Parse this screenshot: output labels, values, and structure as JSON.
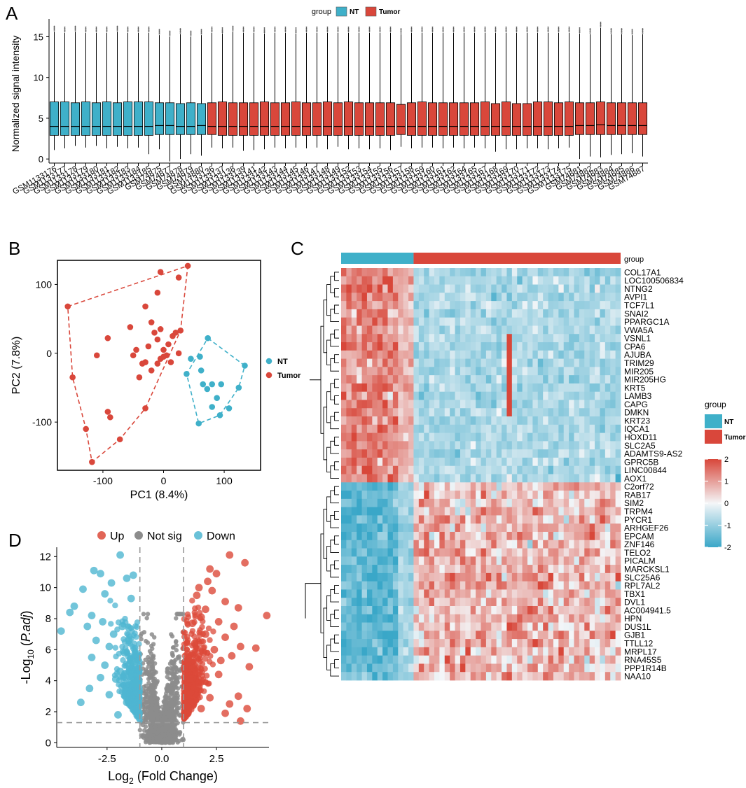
{
  "panels": {
    "A": "A",
    "B": "B",
    "C": "C",
    "D": "D"
  },
  "colors": {
    "nt": "#3fb0c9",
    "tumor": "#d9473b",
    "up": "#dc4a3a",
    "down": "#4fb6d1",
    "notsig": "#8c8c8c",
    "heat_low": "#3aa7c8",
    "heat_mid": "#f4f6f8",
    "heat_high": "#d8473a"
  },
  "chart_data": [
    {
      "id": "A",
      "type": "boxplot",
      "title": "",
      "ylabel": "Normalized signal intensity",
      "xlabel": "",
      "ylim": [
        -0.5,
        16.5
      ],
      "yticks": [
        0,
        5,
        10,
        15
      ],
      "legend": {
        "title": "group",
        "entries": [
          "NT",
          "Tumor"
        ],
        "placement": "top"
      },
      "nt_count": 15,
      "samples": [
        "GSM1133176",
        "GSM1133177",
        "GSM1133178",
        "GSM1133179",
        "GSM1133180",
        "GSM1133181",
        "GSM1133182",
        "GSM1133183",
        "GSM1133184",
        "GSM1133185",
        "GSM74875",
        "GSM74877",
        "GSM74878",
        "GSM74879",
        "GSM74880",
        "GSM1133136",
        "GSM1133137",
        "GSM1133138",
        "GSM1133139",
        "GSM1133141",
        "GSM1133142",
        "GSM1133143",
        "GSM1133144",
        "GSM1133145",
        "GSM1133146",
        "GSM1133147",
        "GSM1133148",
        "GSM1133149",
        "GSM1133152",
        "GSM1133153",
        "GSM1133154",
        "GSM1133155",
        "GSM1133156",
        "GSM1133157",
        "GSM1133158",
        "GSM1133159",
        "GSM1133160",
        "GSM1133161",
        "GSM1133162",
        "GSM1133164",
        "GSM1133165",
        "GSM1133167",
        "GSM1133168",
        "GSM1133169",
        "GSM1133170",
        "GSM1133171",
        "GSM1133172",
        "GSM1133173",
        "GSM1133174",
        "GSM1133175",
        "GSM74881",
        "GSM74882",
        "GSM74883",
        "GSM74884",
        "GSM74885",
        "GSM74886",
        "GSM74887"
      ],
      "q1": [
        2.9,
        2.9,
        2.9,
        2.9,
        2.9,
        2.9,
        2.9,
        2.9,
        2.9,
        2.9,
        3.0,
        3.0,
        3.0,
        3.0,
        3.0,
        3.0,
        2.9,
        2.9,
        2.9,
        2.9,
        2.9,
        2.9,
        2.9,
        2.9,
        2.9,
        2.9,
        2.9,
        2.9,
        2.9,
        2.9,
        2.9,
        2.9,
        2.9,
        3.0,
        2.9,
        2.9,
        2.9,
        2.9,
        2.9,
        2.9,
        2.9,
        2.9,
        2.9,
        2.9,
        2.9,
        2.9,
        2.9,
        2.9,
        2.9,
        2.9,
        3.0,
        3.0,
        3.0,
        3.0,
        3.0,
        3.0,
        3.0
      ],
      "median": [
        4.0,
        4.0,
        4.0,
        4.0,
        4.0,
        4.0,
        4.0,
        4.0,
        4.0,
        4.0,
        4.1,
        4.1,
        4.0,
        4.0,
        4.1,
        4.0,
        4.0,
        4.0,
        4.0,
        4.0,
        4.0,
        4.0,
        4.0,
        4.0,
        4.0,
        4.0,
        4.0,
        4.0,
        4.0,
        4.0,
        4.0,
        4.0,
        4.0,
        4.0,
        4.0,
        4.0,
        4.0,
        4.0,
        4.0,
        4.0,
        4.0,
        4.0,
        4.0,
        4.0,
        4.0,
        4.0,
        4.0,
        4.0,
        4.0,
        4.0,
        4.1,
        4.1,
        4.2,
        4.1,
        4.1,
        4.1,
        4.1
      ],
      "q3": [
        7.0,
        7.0,
        6.9,
        7.0,
        6.9,
        7.0,
        6.9,
        7.0,
        7.0,
        7.0,
        6.9,
        6.9,
        6.8,
        6.9,
        6.8,
        6.9,
        7.0,
        6.9,
        6.9,
        6.9,
        7.0,
        6.9,
        6.9,
        7.0,
        6.9,
        6.9,
        7.0,
        6.9,
        7.0,
        6.9,
        6.9,
        6.9,
        6.9,
        6.7,
        6.9,
        7.0,
        6.9,
        6.9,
        6.9,
        6.9,
        6.9,
        7.0,
        6.8,
        7.0,
        6.8,
        6.8,
        7.0,
        7.0,
        6.9,
        7.0,
        6.9,
        6.9,
        7.0,
        6.9,
        6.9,
        6.9,
        6.9
      ],
      "lower_whisker": [
        1.1,
        1.3,
        1.6,
        1.4,
        1.6,
        1.3,
        1.5,
        1.3,
        1.4,
        0.6,
        1.2,
        -0.3,
        0.0,
        0.6,
        0.4,
        1.4,
        1.3,
        1.4,
        1.0,
        1.1,
        1.2,
        1.4,
        1.3,
        1.4,
        1.3,
        1.4,
        1.2,
        1.5,
        1.2,
        1.3,
        1.2,
        1.3,
        1.1,
        1.5,
        1.3,
        1.4,
        1.4,
        1.3,
        1.4,
        1.3,
        1.4,
        1.3,
        0.9,
        1.2,
        1.2,
        1.3,
        1.3,
        1.2,
        1.3,
        1.4,
        0.0,
        0.3,
        0.2,
        0.5,
        0.6,
        0.7,
        0.3
      ],
      "upper_whisker": [
        15.6,
        15.5,
        15.6,
        15.5,
        15.5,
        15.5,
        15.6,
        15.5,
        15.5,
        15.5,
        15.2,
        15.0,
        15.3,
        15.0,
        15.2,
        15.5,
        15.4,
        15.6,
        15.5,
        15.5,
        15.4,
        15.5,
        15.5,
        15.4,
        15.5,
        15.5,
        15.5,
        15.5,
        15.5,
        15.5,
        15.5,
        15.5,
        15.5,
        15.3,
        15.5,
        15.5,
        15.5,
        15.5,
        15.5,
        15.5,
        15.5,
        15.5,
        15.5,
        15.5,
        15.5,
        15.5,
        15.5,
        15.5,
        15.5,
        15.5,
        15.4,
        15.3,
        16.1,
        15.3,
        15.3,
        15.2,
        15.3
      ]
    },
    {
      "id": "B",
      "type": "scatter",
      "title": "",
      "xlabel": "PC1 (8.4%)",
      "ylabel": "PC2 (7.8%)",
      "xlim": [
        -175,
        160
      ],
      "ylim": [
        -170,
        135
      ],
      "xticks": [
        -100,
        0,
        100
      ],
      "yticks": [
        -100,
        0,
        100
      ],
      "legend": {
        "entries": [
          "NT",
          "Tumor"
        ],
        "placement": "right"
      },
      "series": [
        {
          "name": "Tumor",
          "points": [
            [
              -158,
              68
            ],
            [
              -150,
              -35
            ],
            [
              -128,
              -110
            ],
            [
              -118,
              -158
            ],
            [
              -92,
              22
            ],
            [
              -110,
              -3
            ],
            [
              -92,
              -85
            ],
            [
              -88,
              -93
            ],
            [
              -72,
              -125
            ],
            [
              -30,
              -80
            ],
            [
              -30,
              -13
            ],
            [
              -25,
              10
            ],
            [
              -45,
              5
            ],
            [
              -40,
              -35
            ],
            [
              -55,
              38
            ],
            [
              -50,
              -3
            ],
            [
              -35,
              -15
            ],
            [
              -20,
              45
            ],
            [
              -15,
              30
            ],
            [
              -10,
              20
            ],
            [
              -5,
              35
            ],
            [
              0,
              5
            ],
            [
              5,
              -3
            ],
            [
              8,
              13
            ],
            [
              12,
              -13
            ],
            [
              15,
              25
            ],
            [
              20,
              30
            ],
            [
              25,
              0
            ],
            [
              28,
              33
            ],
            [
              -10,
              -15
            ],
            [
              -20,
              -25
            ],
            [
              -5,
              -8
            ],
            [
              0,
              -5
            ],
            [
              -30,
              68
            ],
            [
              -10,
              88
            ],
            [
              -5,
              118
            ],
            [
              25,
              110
            ],
            [
              40,
              127
            ]
          ]
        },
        {
          "name": "NT",
          "points": [
            [
              73,
              22
            ],
            [
              45,
              -8
            ],
            [
              60,
              -5
            ],
            [
              38,
              -30
            ],
            [
              62,
              -25
            ],
            [
              65,
              -45
            ],
            [
              72,
              -52
            ],
            [
              80,
              -45
            ],
            [
              95,
              -45
            ],
            [
              88,
              -65
            ],
            [
              80,
              -78
            ],
            [
              108,
              -80
            ],
            [
              93,
              -90
            ],
            [
              58,
              -102
            ],
            [
              124,
              -50
            ],
            [
              134,
              -18
            ]
          ]
        }
      ],
      "hull_tumor": [
        [
          -158,
          68
        ],
        [
          40,
          127
        ],
        [
          28,
          33
        ],
        [
          -30,
          -80
        ],
        [
          -72,
          -125
        ],
        [
          -118,
          -158
        ],
        [
          -128,
          -110
        ],
        [
          -150,
          -35
        ]
      ],
      "hull_nt": [
        [
          73,
          22
        ],
        [
          134,
          -18
        ],
        [
          124,
          -50
        ],
        [
          93,
          -90
        ],
        [
          58,
          -102
        ],
        [
          38,
          -30
        ]
      ]
    },
    {
      "id": "C",
      "type": "heatmap",
      "title": "",
      "annotation": "group",
      "legend_title": "group",
      "legend_entries": [
        "NT",
        "Tumor"
      ],
      "scale_ticks": [
        2,
        1,
        0,
        -1,
        -2
      ],
      "nt_columns": 14,
      "tumor_columns": 40,
      "genes": [
        "COL17A1",
        "LOC100506834",
        "NTNG2",
        "AVPI1",
        "TCF7L1",
        "SNAI2",
        "PPARGC1A",
        "VWA5A",
        "VSNL1",
        "CPA6",
        "AJUBA",
        "TRIM29",
        "MIR205",
        "MIR205HG",
        "KRT5",
        "LAMB3",
        "CAPG",
        "DMKN",
        "KRT23",
        "IQCA1",
        "HOXD11",
        "SLC2A5",
        "ADAMTS9-AS2",
        "GPRC5B",
        "LINC00844",
        "AOX1",
        "C2orf72",
        "RAB17",
        "SIM2",
        "TRPM4",
        "PYCR1",
        "ARHGEF26",
        "EPCAM",
        "ZNF146",
        "TELO2",
        "PICALM",
        "MARCKSL1",
        "SLC25A6",
        "RPL7AL2",
        "TBX1",
        "DVL1",
        "AC004941.5",
        "HPN",
        "DUS1L",
        "GJB1",
        "TTLL12",
        "MRPL17",
        "RNA45S5",
        "PPP1R14B",
        "NAA10"
      ],
      "up_in_nt_count": 26
    },
    {
      "id": "D",
      "type": "volcano",
      "title": "",
      "xlabel_main": "Log",
      "xlabel_sub": "2",
      "xlabel_rest": " (Fold Change)",
      "ylabel_main": "-Log",
      "ylabel_sub": "10",
      "ylabel_rest": "P.adj",
      "xlim": [
        -4.8,
        4.9
      ],
      "ylim": [
        -0.3,
        12.6
      ],
      "xticks": [
        -2.5,
        0.0,
        2.5
      ],
      "yticks": [
        0,
        2,
        4,
        6,
        8,
        10,
        12
      ],
      "fc_threshold": 1,
      "padj_line": 1.3,
      "legend": {
        "entries": [
          "Up",
          "Not sig",
          "Down"
        ],
        "placement": "top"
      },
      "up_points": [
        [
          3.1,
          12.1
        ],
        [
          3.8,
          11.6
        ],
        [
          2.2,
          11.2
        ],
        [
          2.5,
          10.9
        ],
        [
          2.1,
          10.4
        ],
        [
          1.7,
          10.0
        ],
        [
          2.3,
          9.8
        ],
        [
          1.6,
          9.5
        ],
        [
          2.9,
          9.1
        ],
        [
          4.8,
          8.2
        ],
        [
          3.5,
          8.7
        ],
        [
          2.0,
          8.6
        ],
        [
          1.8,
          8.1
        ],
        [
          2.6,
          7.8
        ],
        [
          3.3,
          7.5
        ],
        [
          1.4,
          7.7
        ],
        [
          2.9,
          6.8
        ],
        [
          3.6,
          6.2
        ],
        [
          4.3,
          6.1
        ],
        [
          3.2,
          5.6
        ],
        [
          2.7,
          5.3
        ],
        [
          4.0,
          4.9
        ],
        [
          1.9,
          5.8
        ],
        [
          2.4,
          6.0
        ],
        [
          1.5,
          6.4
        ],
        [
          2.0,
          7.0
        ],
        [
          3.5,
          3.0
        ],
        [
          3.1,
          2.5
        ],
        [
          2.9,
          1.9
        ],
        [
          3.6,
          1.4
        ],
        [
          3.9,
          2.2
        ],
        [
          2.2,
          2.9
        ],
        [
          1.7,
          3.6
        ],
        [
          1.3,
          4.1
        ],
        [
          1.2,
          5.2
        ],
        [
          2.6,
          4.4
        ],
        [
          1.8,
          2.2
        ]
      ],
      "down_points": [
        [
          -1.9,
          12.1
        ],
        [
          -3.1,
          11.1
        ],
        [
          -2.8,
          10.9
        ],
        [
          -1.6,
          10.6
        ],
        [
          -2.3,
          10.3
        ],
        [
          -1.3,
          10.8
        ],
        [
          -3.6,
          9.9
        ],
        [
          -2.6,
          9.6
        ],
        [
          -1.4,
          9.3
        ],
        [
          -4.2,
          8.4
        ],
        [
          -4.0,
          8.8
        ],
        [
          -3.2,
          8.2
        ],
        [
          -2.7,
          7.8
        ],
        [
          -1.8,
          7.5
        ],
        [
          -4.6,
          7.2
        ],
        [
          -3.4,
          7.5
        ],
        [
          -2.2,
          7.0
        ],
        [
          -1.5,
          7.4
        ],
        [
          -3.0,
          6.6
        ],
        [
          -2.4,
          6.2
        ],
        [
          -1.7,
          5.8
        ],
        [
          -3.2,
          5.5
        ],
        [
          -2.6,
          5.0
        ],
        [
          -1.9,
          4.6
        ],
        [
          -1.3,
          5.2
        ],
        [
          -2.8,
          4.2
        ],
        [
          -3.3,
          3.5
        ],
        [
          -3.7,
          2.6
        ],
        [
          -2.4,
          3.1
        ],
        [
          -1.6,
          2.6
        ],
        [
          -2.0,
          1.8
        ],
        [
          -1.2,
          3.8
        ],
        [
          -2.1,
          4.1
        ],
        [
          -1.5,
          6.6
        ]
      ],
      "up_count_dense": 420,
      "down_count_dense": 380,
      "notsig_count": 1400
    }
  ]
}
